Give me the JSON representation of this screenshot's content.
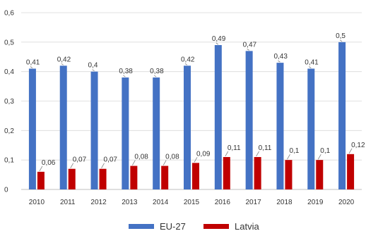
{
  "chart_data": {
    "type": "bar",
    "categories": [
      "2010",
      "2011",
      "2012",
      "2013",
      "2014",
      "2015",
      "2016",
      "2017",
      "2018",
      "2019",
      "2020"
    ],
    "series": [
      {
        "name": "EU-27",
        "color": "#4472c4",
        "values": [
          0.41,
          0.42,
          0.4,
          0.38,
          0.38,
          0.42,
          0.49,
          0.47,
          0.43,
          0.41,
          0.5
        ],
        "labels": [
          "0,41",
          "0,42",
          "0,4",
          "0,38",
          "0,38",
          "0,42",
          "0,49",
          "0,47",
          "0,43",
          "0,41",
          "0,5"
        ]
      },
      {
        "name": "Latvia",
        "color": "#c00000",
        "values": [
          0.06,
          0.07,
          0.07,
          0.08,
          0.08,
          0.09,
          0.11,
          0.11,
          0.1,
          0.1,
          0.12
        ],
        "labels": [
          "0,06",
          "0,07",
          "0,07",
          "0,08",
          "0,08",
          "0,09",
          "0,11",
          "0,11",
          "0,1",
          "0,1",
          "0,12"
        ]
      }
    ],
    "ylim": [
      0,
      0.6
    ],
    "yticks": [
      0,
      0.1,
      0.2,
      0.3,
      0.4,
      0.5,
      0.6
    ],
    "ytick_labels": [
      "0",
      "0,1",
      "0,2",
      "0,3",
      "0,4",
      "0,5",
      "0,6"
    ],
    "grid": true,
    "legend_position": "bottom"
  }
}
